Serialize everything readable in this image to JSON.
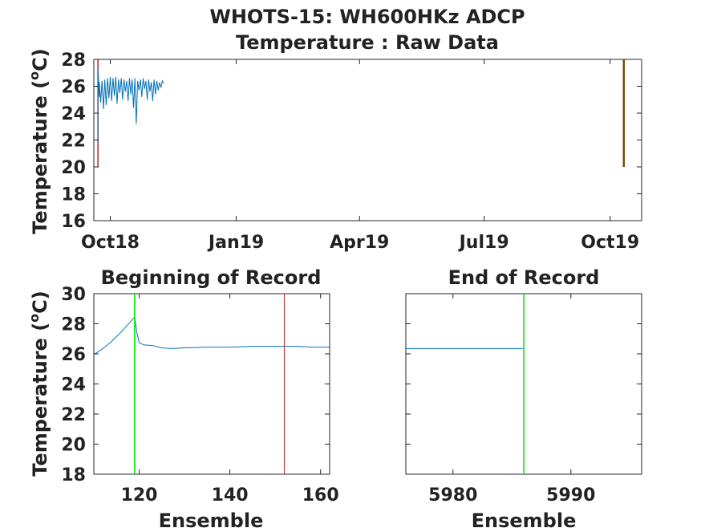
{
  "figure": {
    "title_line1": "WHOTS-15: WH600HKz ADCP",
    "title_line2": "Temperature : Raw Data"
  },
  "colors": {
    "series": "#0072BD",
    "red_marker": "#CC2222",
    "green_marker": "#00EE00",
    "dark_marker": "#7A4A00",
    "axis": "#262626"
  },
  "chart_data": [
    {
      "id": "top",
      "type": "line",
      "title": "",
      "xlabel": "",
      "ylabel": "Temperature (°C)",
      "ylabel_base": "Temperature (",
      "ylabel_sup": "o",
      "ylabel_end": "C)",
      "ylim": [
        16,
        28
      ],
      "yticks": [
        16,
        18,
        20,
        22,
        24,
        26,
        28
      ],
      "xlim": [
        "2018-09-19",
        "2019-10-24"
      ],
      "xticks": [
        {
          "date": "2018-10-01",
          "label": "Oct18"
        },
        {
          "date": "2019-01-01",
          "label": "Jan19"
        },
        {
          "date": "2019-04-01",
          "label": "Apr19"
        },
        {
          "date": "2019-07-01",
          "label": "Jul19"
        },
        {
          "date": "2019-10-01",
          "label": "Oct19"
        }
      ],
      "series": [
        {
          "x": [
            "2018-09-22",
            "2018-09-22",
            "2018-09-23",
            "2018-09-23",
            "2018-09-24",
            "2018-09-25",
            "2018-09-26",
            "2018-09-27",
            "2018-09-28",
            "2018-09-29",
            "2018-09-30",
            "2018-10-01",
            "2018-10-02",
            "2018-10-03",
            "2018-10-04",
            "2018-10-05",
            "2018-10-06",
            "2018-10-07",
            "2018-10-08",
            "2018-10-09",
            "2018-10-10",
            "2018-10-11",
            "2018-10-12",
            "2018-10-13",
            "2018-10-14",
            "2018-10-15",
            "2018-10-16",
            "2018-10-17",
            "2018-10-18",
            "2018-10-19",
            "2018-10-20",
            "2018-10-21",
            "2018-10-22",
            "2018-10-23",
            "2018-10-24",
            "2018-10-25",
            "2018-10-26",
            "2018-10-27",
            "2018-10-28",
            "2018-10-29",
            "2018-10-30",
            "2018-10-31",
            "2018-11-01",
            "2018-11-02",
            "2018-11-03",
            "2018-11-04",
            "2018-11-05",
            "2018-11-06",
            "2018-11-07",
            "2018-11-08",
            "2018-11-09"
          ],
          "y": [
            21.8,
            27.4,
            25.2,
            26.3,
            24.8,
            26.4,
            24.3,
            26.5,
            24.6,
            26.6,
            25.1,
            26.7,
            24.9,
            26.6,
            25.3,
            26.7,
            24.7,
            26.5,
            25.5,
            26.6,
            25.0,
            26.5,
            25.6,
            26.4,
            24.9,
            26.6,
            25.4,
            26.5,
            24.4,
            26.6,
            23.2,
            26.4,
            25.7,
            26.5,
            25.2,
            26.6,
            25.8,
            26.4,
            25.0,
            26.5,
            25.6,
            26.3,
            24.9,
            26.5,
            25.4,
            26.4,
            25.7,
            26.3,
            25.9,
            26.4,
            26.2
          ]
        }
      ],
      "markers": [
        {
          "date": "2018-09-22",
          "from": 20,
          "to": 28,
          "color": "red"
        },
        {
          "date": "2019-10-11",
          "from": 20,
          "to": 28,
          "color": "dark"
        }
      ]
    },
    {
      "id": "begin",
      "type": "line",
      "title": "Beginning of Record",
      "xlabel": "Ensemble",
      "ylabel": "Temperature (°C)",
      "ylabel_base": "Temperature (",
      "ylabel_sup": "o",
      "ylabel_end": "C)",
      "xlim": [
        110,
        162
      ],
      "ylim": [
        18,
        30
      ],
      "xticks": [
        120,
        140,
        160
      ],
      "yticks": [
        18,
        20,
        22,
        24,
        26,
        28,
        30
      ],
      "series": [
        {
          "x": [
            110,
            112,
            114,
            116,
            118,
            119,
            119.5,
            120,
            121,
            123,
            125,
            127,
            130,
            135,
            140,
            145,
            150,
            152,
            155,
            158,
            162
          ],
          "y": [
            25.95,
            26.35,
            26.85,
            27.45,
            28.1,
            28.45,
            27.4,
            26.75,
            26.6,
            26.55,
            26.4,
            26.35,
            26.4,
            26.45,
            26.45,
            26.5,
            26.5,
            26.5,
            26.5,
            26.45,
            26.45
          ]
        }
      ],
      "markers": [
        {
          "x": 119,
          "color": "green"
        },
        {
          "x": 152,
          "color": "red"
        }
      ]
    },
    {
      "id": "end",
      "type": "line",
      "title": "End of Record",
      "xlabel": "Ensemble",
      "ylabel": "",
      "xlim": [
        5976,
        5996
      ],
      "ylim": [
        18,
        30
      ],
      "xticks": [
        5980,
        5990
      ],
      "yticks": [],
      "series": [
        {
          "x": [
            5976,
            5986
          ],
          "y": [
            26.35,
            26.35
          ]
        }
      ],
      "markers": [
        {
          "x": 5986,
          "color": "green"
        }
      ]
    }
  ]
}
